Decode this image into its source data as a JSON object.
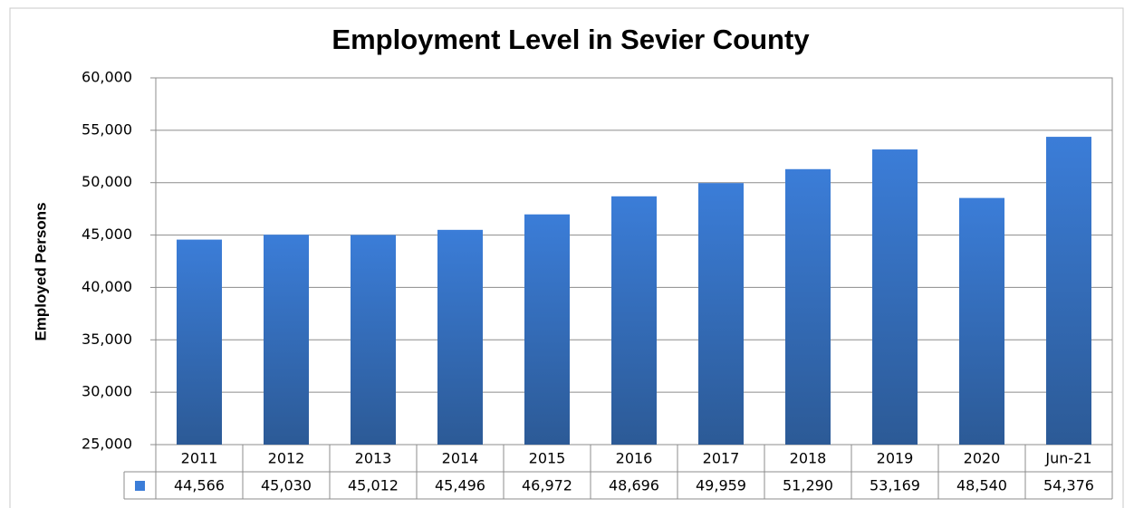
{
  "chart_data": {
    "type": "bar",
    "title": "Employment Level in Sevier County",
    "y_label": "Employed Persons",
    "categories": [
      "2011",
      "2012",
      "2013",
      "2014",
      "2015",
      "2016",
      "2017",
      "2018",
      "2019",
      "2020",
      "Jun-21"
    ],
    "values": [
      44566,
      45030,
      45012,
      45496,
      46972,
      48696,
      49959,
      51290,
      53169,
      48540,
      54376
    ],
    "value_labels": [
      "44,566",
      "45,030",
      "45,012",
      "45,496",
      "46,972",
      "48,696",
      "49,959",
      "51,290",
      "53,169",
      "48,540",
      "54,376"
    ],
    "color": "#3b7dd8",
    "ylim": [
      25000,
      60000
    ],
    "yticks": [
      {
        "value": 25000,
        "label": "25,000"
      },
      {
        "value": 30000,
        "label": "30,000"
      },
      {
        "value": 35000,
        "label": "35,000"
      },
      {
        "value": 40000,
        "label": "40,000"
      },
      {
        "value": 45000,
        "label": "45,000"
      },
      {
        "value": 50000,
        "label": "50,000"
      },
      {
        "value": 55000,
        "label": "55,000"
      },
      {
        "value": 60000,
        "label": "60,000"
      }
    ],
    "grid": true
  }
}
